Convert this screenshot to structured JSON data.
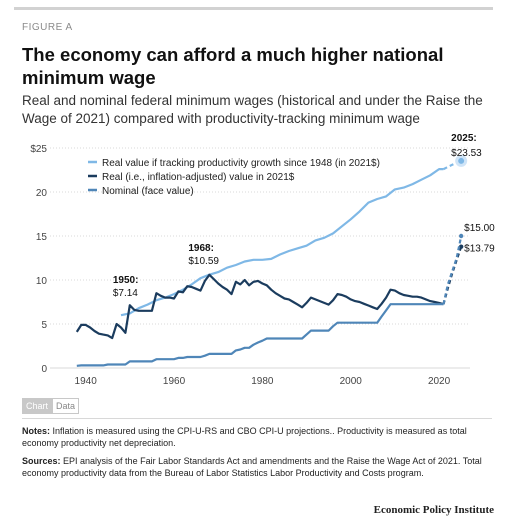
{
  "header": {
    "figure_label": "FIGURE A",
    "title": "The economy can afford a much higher national minimum wage",
    "subtitle": "Real and nominal federal minimum wages (historical and under the Raise the Wage of 2021) compared with productivity-tracking minimum wage"
  },
  "tabs": {
    "chart": "Chart",
    "data": "Data"
  },
  "notes": {
    "notes_label": "Notes:",
    "notes_text": "Inflation is measured using the CPI-U-RS and CBO CPI-U projections.. Productivity is measured as total economy productivity net depreciation.",
    "sources_label": "Sources:",
    "sources_text": "EPI analysis of the Fair Labor Standards Act and amendments and the Raise the Wage Act of 2021. Total economy productivity data from the Bureau of Labor Statistics Labor Productivity and Costs program."
  },
  "brand": "Economic Policy Institute",
  "chart_data": {
    "type": "line",
    "title": "",
    "xlabel": "",
    "ylabel": "",
    "xlim": [
      1936,
      2027
    ],
    "ylim": [
      0,
      25
    ],
    "x_ticks": [
      1940,
      1960,
      1980,
      2000,
      2020
    ],
    "y_ticks": [
      "0",
      "5",
      "10",
      "15",
      "20",
      "$25"
    ],
    "y_tick_values": [
      0,
      5,
      10,
      15,
      20,
      25
    ],
    "grid": true,
    "legend_position": "top-left",
    "series": [
      {
        "name": "Real value if tracking productivity growth since 1948 (in 2021$)",
        "color": "#7fb8e6",
        "points": [
          [
            1948,
            6.0
          ],
          [
            1950,
            6.2
          ],
          [
            1952,
            6.8
          ],
          [
            1954,
            7.2
          ],
          [
            1956,
            7.7
          ],
          [
            1958,
            8.0
          ],
          [
            1960,
            8.4
          ],
          [
            1962,
            8.9
          ],
          [
            1964,
            9.5
          ],
          [
            1966,
            10.2
          ],
          [
            1968,
            10.6
          ],
          [
            1970,
            10.9
          ],
          [
            1972,
            11.4
          ],
          [
            1974,
            11.7
          ],
          [
            1976,
            12.1
          ],
          [
            1978,
            12.3
          ],
          [
            1980,
            12.3
          ],
          [
            1982,
            12.4
          ],
          [
            1984,
            12.9
          ],
          [
            1986,
            13.3
          ],
          [
            1988,
            13.6
          ],
          [
            1990,
            13.9
          ],
          [
            1992,
            14.5
          ],
          [
            1994,
            14.8
          ],
          [
            1996,
            15.3
          ],
          [
            1998,
            16.1
          ],
          [
            2000,
            16.9
          ],
          [
            2002,
            17.8
          ],
          [
            2004,
            18.8
          ],
          [
            2006,
            19.2
          ],
          [
            2008,
            19.5
          ],
          [
            2010,
            20.3
          ],
          [
            2012,
            20.5
          ],
          [
            2014,
            20.9
          ],
          [
            2016,
            21.4
          ],
          [
            2018,
            21.9
          ],
          [
            2020,
            22.6
          ],
          [
            2021,
            22.6
          ]
        ],
        "projection": [
          [
            2021,
            22.6
          ],
          [
            2023,
            23.1
          ],
          [
            2025,
            23.53
          ]
        ]
      },
      {
        "name": "Real (i.e., inflation-adjusted) value in 2021$",
        "color": "#1b3c5e",
        "points": [
          [
            1938,
            4.1
          ],
          [
            1939,
            4.9
          ],
          [
            1940,
            4.9
          ],
          [
            1941,
            4.6
          ],
          [
            1942,
            4.2
          ],
          [
            1943,
            3.9
          ],
          [
            1944,
            3.8
          ],
          [
            1945,
            3.7
          ],
          [
            1946,
            3.4
          ],
          [
            1947,
            5.0
          ],
          [
            1948,
            4.6
          ],
          [
            1949,
            4.0
          ],
          [
            1950,
            7.14
          ],
          [
            1951,
            6.6
          ],
          [
            1952,
            6.5
          ],
          [
            1953,
            6.5
          ],
          [
            1954,
            6.5
          ],
          [
            1955,
            6.5
          ],
          [
            1956,
            8.5
          ],
          [
            1957,
            8.2
          ],
          [
            1958,
            8.0
          ],
          [
            1959,
            8.0
          ],
          [
            1960,
            7.9
          ],
          [
            1961,
            8.7
          ],
          [
            1962,
            8.6
          ],
          [
            1963,
            9.3
          ],
          [
            1964,
            9.2
          ],
          [
            1965,
            9.0
          ],
          [
            1966,
            8.8
          ],
          [
            1967,
            9.9
          ],
          [
            1968,
            10.59
          ],
          [
            1969,
            10.1
          ],
          [
            1970,
            9.6
          ],
          [
            1971,
            9.2
          ],
          [
            1972,
            8.9
          ],
          [
            1973,
            8.4
          ],
          [
            1974,
            9.8
          ],
          [
            1975,
            9.5
          ],
          [
            1976,
            10.0
          ],
          [
            1977,
            9.4
          ],
          [
            1978,
            9.8
          ],
          [
            1979,
            9.9
          ],
          [
            1980,
            9.6
          ],
          [
            1981,
            9.4
          ],
          [
            1982,
            8.9
          ],
          [
            1983,
            8.5
          ],
          [
            1984,
            8.2
          ],
          [
            1985,
            7.9
          ],
          [
            1986,
            7.8
          ],
          [
            1987,
            7.5
          ],
          [
            1988,
            7.2
          ],
          [
            1989,
            6.9
          ],
          [
            1990,
            7.4
          ],
          [
            1991,
            8.0
          ],
          [
            1992,
            7.8
          ],
          [
            1993,
            7.6
          ],
          [
            1994,
            7.4
          ],
          [
            1995,
            7.2
          ],
          [
            1996,
            7.7
          ],
          [
            1997,
            8.4
          ],
          [
            1998,
            8.3
          ],
          [
            1999,
            8.1
          ],
          [
            2000,
            7.8
          ],
          [
            2001,
            7.6
          ],
          [
            2002,
            7.5
          ],
          [
            2003,
            7.3
          ],
          [
            2004,
            7.1
          ],
          [
            2005,
            6.9
          ],
          [
            2006,
            6.7
          ],
          [
            2007,
            7.3
          ],
          [
            2008,
            8.0
          ],
          [
            2009,
            8.9
          ],
          [
            2010,
            8.8
          ],
          [
            2011,
            8.5
          ],
          [
            2012,
            8.3
          ],
          [
            2013,
            8.2
          ],
          [
            2014,
            8.1
          ],
          [
            2015,
            8.1
          ],
          [
            2016,
            8.0
          ],
          [
            2017,
            7.8
          ],
          [
            2018,
            7.6
          ],
          [
            2019,
            7.5
          ],
          [
            2020,
            7.4
          ],
          [
            2021,
            7.25
          ]
        ],
        "projection": [
          [
            2021,
            7.25
          ],
          [
            2022,
            9.1
          ],
          [
            2023,
            10.8
          ],
          [
            2024,
            12.3
          ],
          [
            2025,
            13.79
          ]
        ]
      },
      {
        "name": "Nominal (face value)",
        "color": "#4f86b8",
        "points": [
          [
            1938,
            0.25
          ],
          [
            1939,
            0.3
          ],
          [
            1944,
            0.3
          ],
          [
            1945,
            0.4
          ],
          [
            1949,
            0.4
          ],
          [
            1950,
            0.75
          ],
          [
            1955,
            0.75
          ],
          [
            1956,
            1.0
          ],
          [
            1960,
            1.0
          ],
          [
            1961,
            1.15
          ],
          [
            1962,
            1.15
          ],
          [
            1963,
            1.25
          ],
          [
            1966,
            1.25
          ],
          [
            1967,
            1.4
          ],
          [
            1968,
            1.6
          ],
          [
            1973,
            1.6
          ],
          [
            1974,
            2.0
          ],
          [
            1975,
            2.1
          ],
          [
            1976,
            2.3
          ],
          [
            1977,
            2.3
          ],
          [
            1978,
            2.65
          ],
          [
            1979,
            2.9
          ],
          [
            1980,
            3.1
          ],
          [
            1981,
            3.35
          ],
          [
            1989,
            3.35
          ],
          [
            1990,
            3.8
          ],
          [
            1991,
            4.25
          ],
          [
            1995,
            4.25
          ],
          [
            1996,
            4.75
          ],
          [
            1997,
            5.15
          ],
          [
            2006,
            5.15
          ],
          [
            2007,
            5.85
          ],
          [
            2008,
            6.55
          ],
          [
            2009,
            7.25
          ],
          [
            2021,
            7.25
          ]
        ],
        "projection": [
          [
            2021,
            7.25
          ],
          [
            2022,
            9.5
          ],
          [
            2023,
            11.0
          ],
          [
            2024,
            12.5
          ],
          [
            2025,
            15.0
          ]
        ]
      }
    ],
    "annotations": [
      {
        "year_label": "1950:",
        "value_label": "$7.14",
        "x": 1950,
        "y": 7.14
      },
      {
        "year_label": "1968:",
        "value_label": "$10.59",
        "x": 1968,
        "y": 10.59
      },
      {
        "year_label": "2025:",
        "value_label": "$23.53",
        "x": 2025,
        "y": 23.53
      },
      {
        "year_label": "",
        "value_label": "$15.00",
        "x": 2025,
        "y": 15.0
      },
      {
        "year_label": "",
        "value_label": "$13.79",
        "x": 2025,
        "y": 13.79
      }
    ]
  }
}
